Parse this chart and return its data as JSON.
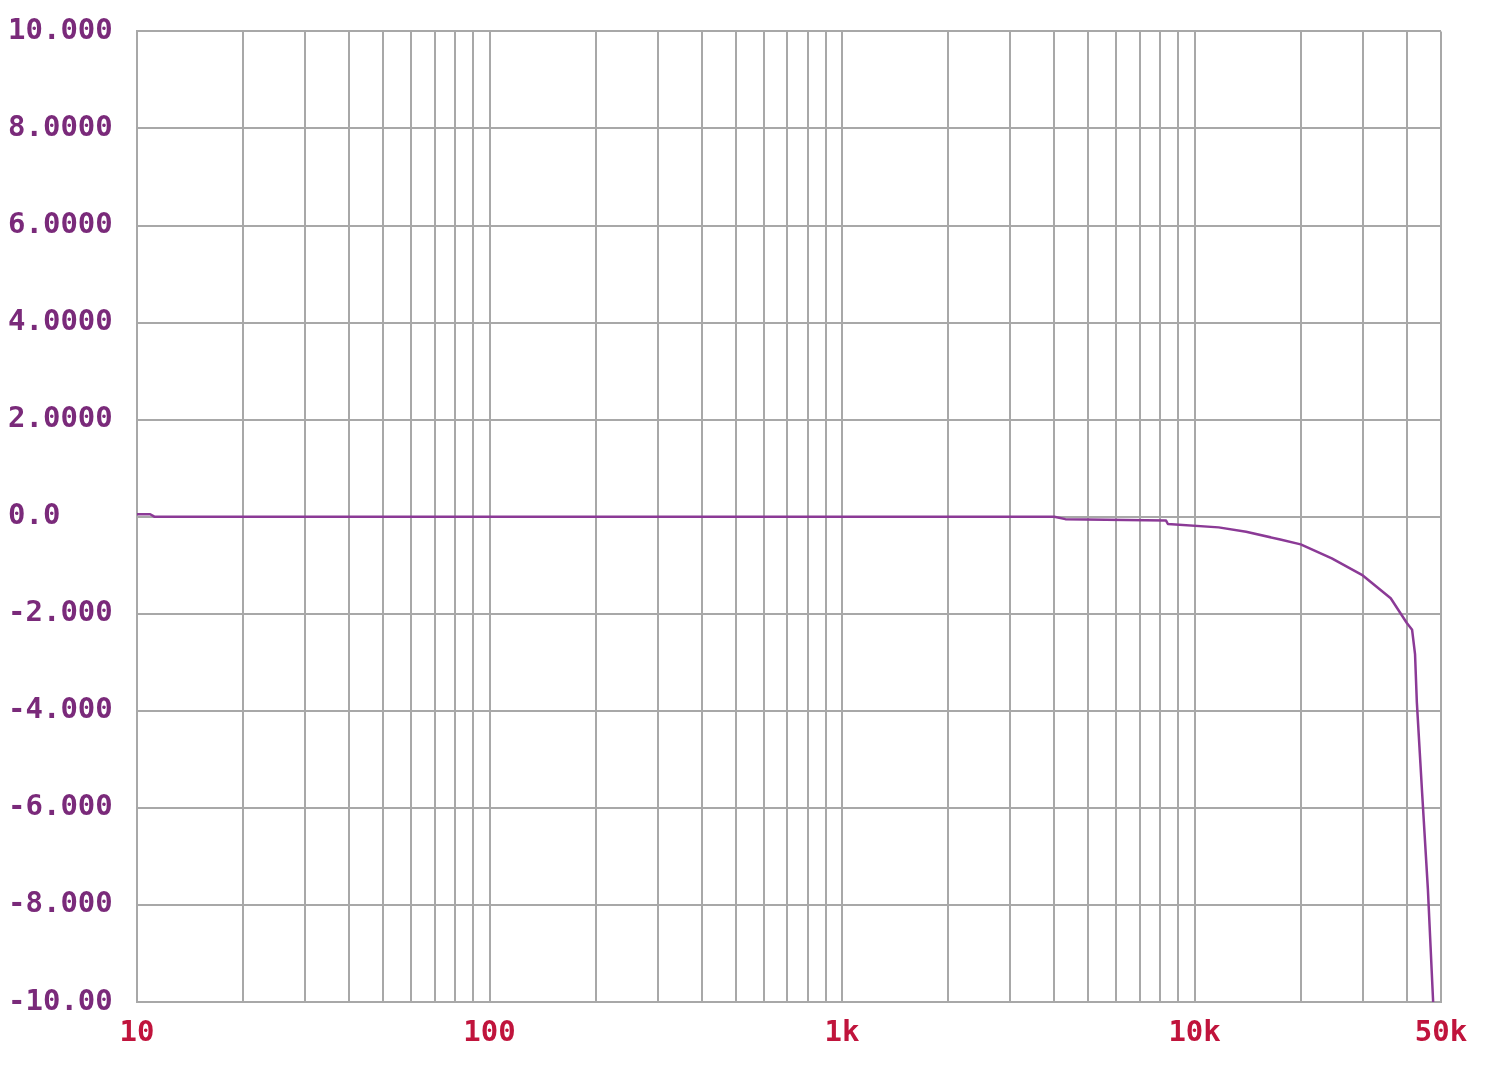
{
  "chart_data": {
    "type": "line",
    "log": "x",
    "grid": true,
    "marker": "none",
    "line_style": "solid",
    "x": [
      10,
      10.9,
      11.2,
      100,
      1000,
      4000,
      4300,
      8300,
      8400,
      11700,
      14000,
      17500,
      20000,
      24500,
      30000,
      36000,
      40000,
      41400,
      42200,
      42700,
      44200,
      45900,
      47500
    ],
    "series": [
      {
        "color": "#8b3a96",
        "values": [
          0.05,
          0.05,
          0,
          0,
          0,
          0,
          -0.05,
          -0.08,
          -0.15,
          -0.22,
          -0.31,
          -0.47,
          -0.57,
          -0.86,
          -1.21,
          -1.68,
          -2.19,
          -2.33,
          -2.83,
          -3.82,
          -5.69,
          -7.68,
          -10.0
        ]
      }
    ],
    "xlim": [
      10,
      50000
    ],
    "xticks": [
      10,
      {
        "value": 20,
        "label": null
      },
      {
        "value": 30,
        "label": null
      },
      {
        "value": 40,
        "label": null
      },
      {
        "value": 50,
        "label": null
      },
      {
        "value": 60,
        "label": null
      },
      {
        "value": 70,
        "label": null
      },
      {
        "value": 80,
        "label": null
      },
      {
        "value": 90,
        "label": null
      },
      100,
      {
        "value": 200,
        "label": null
      },
      {
        "value": 300,
        "label": null
      },
      {
        "value": 400,
        "label": null
      },
      {
        "value": 500,
        "label": null
      },
      {
        "value": 600,
        "label": null
      },
      {
        "value": 700,
        "label": null
      },
      {
        "value": 800,
        "label": null
      },
      {
        "value": 900,
        "label": null
      },
      {
        "value": 1000,
        "label": "1k"
      },
      {
        "value": 2000,
        "label": null
      },
      {
        "value": 3000,
        "label": null
      },
      {
        "value": 4000,
        "label": null
      },
      {
        "value": 5000,
        "label": null
      },
      {
        "value": 6000,
        "label": null
      },
      {
        "value": 7000,
        "label": null
      },
      {
        "value": 8000,
        "label": null
      },
      {
        "value": 9000,
        "label": null
      },
      {
        "value": 10000,
        "label": "10k"
      },
      {
        "value": 20000,
        "label": null
      },
      {
        "value": 30000,
        "label": null
      },
      {
        "value": 40000,
        "label": null
      },
      {
        "value": 50000,
        "label": "50k"
      }
    ],
    "ylim": [
      -10,
      10
    ],
    "yticks": [
      {
        "value": 10,
        "label": "10.000"
      },
      {
        "value": 8,
        "label": "8.0000"
      },
      {
        "value": 6,
        "label": "6.0000"
      },
      {
        "value": 4,
        "label": "4.0000"
      },
      {
        "value": 2,
        "label": "2.0000"
      },
      {
        "value": 0,
        "label": "0.0"
      },
      {
        "value": -2,
        "label": "-2.000"
      },
      {
        "value": -4,
        "label": "-4.000"
      },
      {
        "value": -6,
        "label": "-6.000"
      },
      {
        "value": -8,
        "label": "-8.000"
      },
      {
        "value": -10,
        "label": "-10.00"
      }
    ]
  }
}
